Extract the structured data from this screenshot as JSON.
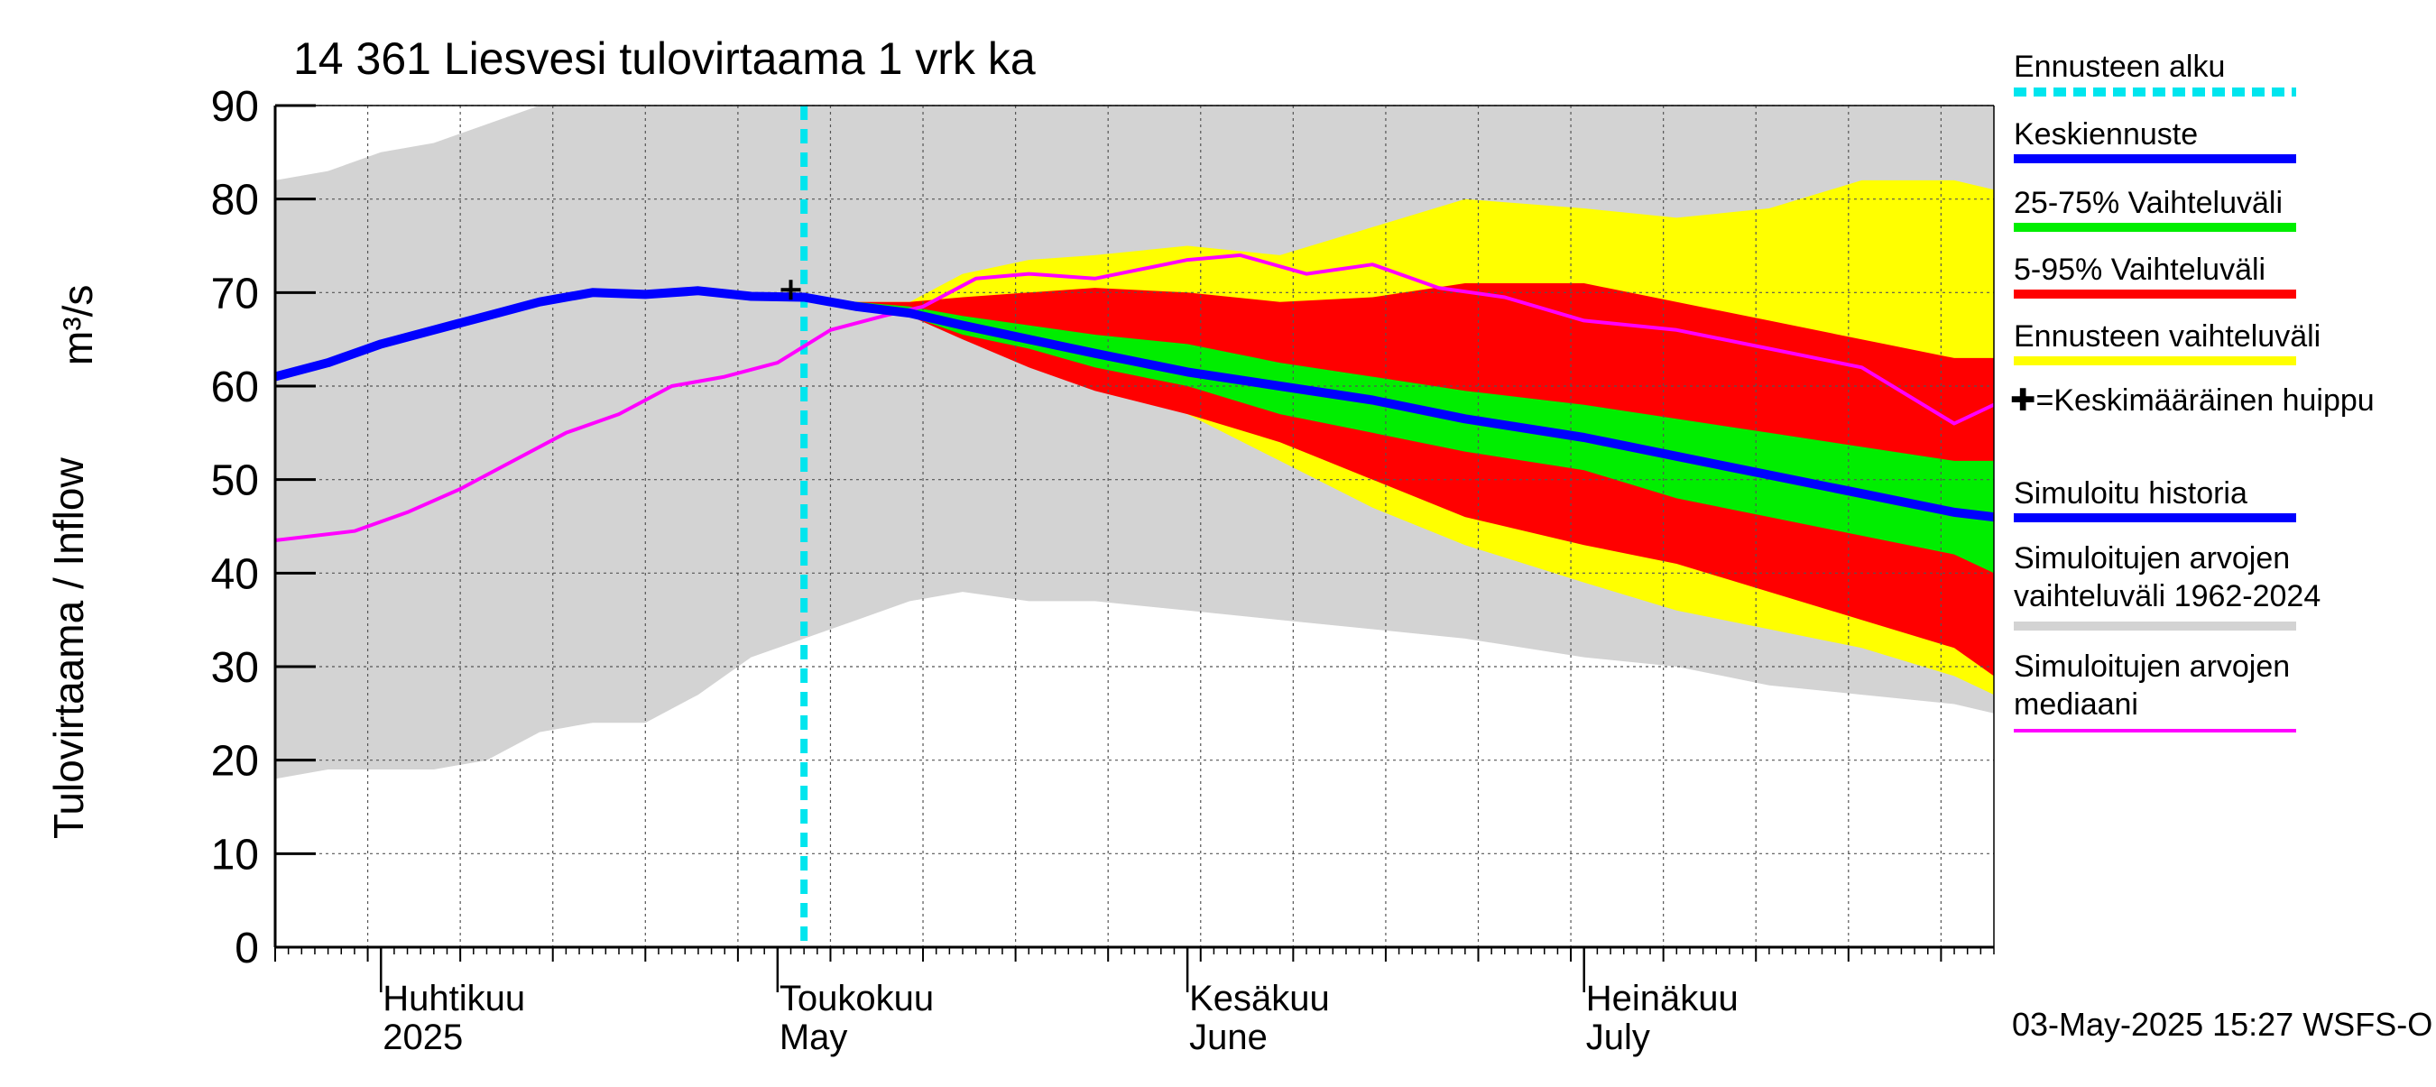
{
  "chart_data": {
    "type": "area",
    "title": "14 361 Liesvesi tulovirtaama 1 vrk ka",
    "ylabel_fi": "Tulovirtaama / Inflow",
    "ylabel_unit": "m³/s",
    "ylim": [
      0,
      90
    ],
    "yticks": [
      0,
      10,
      20,
      30,
      40,
      50,
      60,
      70,
      80,
      90
    ],
    "x_range": [
      "2025-03-24",
      "2025-08-01"
    ],
    "grid": true,
    "month_labels": [
      {
        "date": "2025-04-01",
        "fi": "Huhtikuu",
        "en": "2025"
      },
      {
        "date": "2025-05-01",
        "fi": "Toukokuu",
        "en": "May"
      },
      {
        "date": "2025-06-01",
        "fi": "Kesäkuu",
        "en": "June"
      },
      {
        "date": "2025-07-01",
        "fi": "Heinäkuu",
        "en": "July"
      }
    ],
    "forecast_start": "2025-05-03",
    "mean_peak": {
      "date": "2025-05-02",
      "value": 70.3
    },
    "footer": "03-May-2025 15:27 WSFS-O",
    "legend": [
      {
        "label": "Ennusteen alku",
        "color": "#00e5ee",
        "style": "dashed"
      },
      {
        "label": "Keskiennuste",
        "color": "#0000ff",
        "style": "line"
      },
      {
        "label": "25-75% Vaihteluväli",
        "color": "#00ee00",
        "style": "line"
      },
      {
        "label": "5-95% Vaihteluväli",
        "color": "#ff0000",
        "style": "line"
      },
      {
        "label": "Ennusteen vaihteluväli",
        "color": "#ffff00",
        "style": "line"
      },
      {
        "label": "✚=Keskimääräinen huippu",
        "color": "#000000",
        "style": "none"
      },
      {
        "label": "Simuloitu historia",
        "color": "#0000ff",
        "style": "line"
      },
      {
        "label": "Simuloitujen arvojen vaihteluväli 1962-2024",
        "color": "#d3d3d3",
        "style": "line"
      },
      {
        "label": "Simuloitujen arvojen mediaani",
        "color": "#ff00ff",
        "style": "line"
      }
    ],
    "series": [
      {
        "name": "Simuloitujen arvojen vaihteluväli 1962-2024",
        "kind": "band",
        "color": "#d3d3d3",
        "x": [
          "2025-03-24",
          "2025-03-28",
          "2025-04-01",
          "2025-04-05",
          "2025-04-09",
          "2025-04-13",
          "2025-04-17",
          "2025-04-21",
          "2025-04-25",
          "2025-04-29",
          "2025-05-03",
          "2025-05-07",
          "2025-05-11",
          "2025-05-15",
          "2025-05-20",
          "2025-05-25",
          "2025-06-01",
          "2025-06-08",
          "2025-06-15",
          "2025-06-22",
          "2025-07-01",
          "2025-07-08",
          "2025-07-15",
          "2025-07-22",
          "2025-07-29",
          "2025-08-01"
        ],
        "lower": [
          18,
          19,
          19,
          19,
          20,
          23,
          24,
          24,
          27,
          31,
          33,
          35,
          37,
          38,
          37,
          37,
          36,
          35,
          34,
          33,
          31,
          30,
          28,
          27,
          26,
          25
        ],
        "upper": [
          82,
          83,
          85,
          86,
          88,
          90,
          90,
          90,
          90,
          90,
          90,
          90,
          90,
          90,
          90,
          90,
          90,
          90,
          90,
          90,
          90,
          90,
          90,
          90,
          90,
          90
        ]
      },
      {
        "name": "Ennusteen vaihteluväli",
        "kind": "band",
        "color": "#ffff00",
        "x": [
          "2025-05-03",
          "2025-05-07",
          "2025-05-11",
          "2025-05-15",
          "2025-05-20",
          "2025-05-25",
          "2025-06-01",
          "2025-06-08",
          "2025-06-15",
          "2025-06-22",
          "2025-07-01",
          "2025-07-08",
          "2025-07-15",
          "2025-07-22",
          "2025-07-29",
          "2025-08-01"
        ],
        "lower": [
          69.5,
          68.5,
          67.5,
          66,
          63,
          60,
          57,
          52,
          47,
          43,
          39,
          36,
          34,
          32,
          29,
          27
        ],
        "upper": [
          69.5,
          69,
          69,
          72,
          73.5,
          74,
          75,
          74,
          77,
          80,
          79,
          78,
          79,
          82,
          82,
          81
        ]
      },
      {
        "name": "5-95% Vaihteluväli",
        "kind": "band",
        "color": "#ff0000",
        "x": [
          "2025-05-03",
          "2025-05-07",
          "2025-05-11",
          "2025-05-15",
          "2025-05-20",
          "2025-05-25",
          "2025-06-01",
          "2025-06-08",
          "2025-06-15",
          "2025-06-22",
          "2025-07-01",
          "2025-07-08",
          "2025-07-15",
          "2025-07-22",
          "2025-07-29",
          "2025-08-01"
        ],
        "lower": [
          69.5,
          68.5,
          67.5,
          65,
          62,
          59.5,
          57,
          54,
          50,
          46,
          43,
          41,
          38,
          35,
          32,
          29
        ],
        "upper": [
          69.5,
          69,
          69,
          69.5,
          70,
          70.5,
          70,
          69,
          69.5,
          71,
          71,
          69,
          67,
          65,
          63,
          63
        ]
      },
      {
        "name": "25-75% Vaihteluväli",
        "kind": "band",
        "color": "#00ee00",
        "x": [
          "2025-05-03",
          "2025-05-07",
          "2025-05-11",
          "2025-05-15",
          "2025-05-20",
          "2025-05-25",
          "2025-06-01",
          "2025-06-08",
          "2025-06-15",
          "2025-06-22",
          "2025-07-01",
          "2025-07-08",
          "2025-07-15",
          "2025-07-22",
          "2025-07-29",
          "2025-08-01"
        ],
        "lower": [
          69.5,
          68.5,
          67.5,
          65.5,
          64,
          62,
          60,
          57,
          55,
          53,
          51,
          48,
          46,
          44,
          42,
          40
        ],
        "upper": [
          69.5,
          69,
          68.5,
          67.5,
          66.5,
          65.5,
          64.5,
          62.5,
          61,
          59.5,
          58,
          56.5,
          55,
          53.5,
          52,
          52
        ]
      },
      {
        "name": "Keskiennuste",
        "kind": "line",
        "color": "#0000ff",
        "x": [
          "2025-05-03",
          "2025-05-07",
          "2025-05-11",
          "2025-05-15",
          "2025-05-20",
          "2025-05-25",
          "2025-06-01",
          "2025-06-08",
          "2025-06-15",
          "2025-06-22",
          "2025-07-01",
          "2025-07-08",
          "2025-07-15",
          "2025-07-22",
          "2025-07-29",
          "2025-08-01"
        ],
        "values": [
          69.5,
          68.5,
          67.8,
          66.5,
          65,
          63.5,
          61.5,
          60,
          58.5,
          56.5,
          54.5,
          52.5,
          50.5,
          48.5,
          46.5,
          46
        ]
      },
      {
        "name": "Simuloitu historia",
        "kind": "line",
        "color": "#0000ff",
        "x": [
          "2025-03-24",
          "2025-03-28",
          "2025-04-01",
          "2025-04-05",
          "2025-04-09",
          "2025-04-13",
          "2025-04-17",
          "2025-04-21",
          "2025-04-25",
          "2025-04-29",
          "2025-05-03"
        ],
        "values": [
          61,
          62.5,
          64.5,
          66,
          67.5,
          69,
          70,
          69.8,
          70.2,
          69.6,
          69.5
        ]
      },
      {
        "name": "Simuloitujen arvojen mediaani",
        "kind": "line",
        "color": "#ff00ff",
        "x": [
          "2025-03-24",
          "2025-03-30",
          "2025-04-03",
          "2025-04-07",
          "2025-04-11",
          "2025-04-15",
          "2025-04-19",
          "2025-04-23",
          "2025-04-27",
          "2025-05-01",
          "2025-05-05",
          "2025-05-09",
          "2025-05-12",
          "2025-05-16",
          "2025-05-20",
          "2025-05-25",
          "2025-06-01",
          "2025-06-05",
          "2025-06-10",
          "2025-06-15",
          "2025-06-20",
          "2025-06-25",
          "2025-07-01",
          "2025-07-08",
          "2025-07-15",
          "2025-07-22",
          "2025-07-29",
          "2025-08-01"
        ],
        "values": [
          43.5,
          44.5,
          46.5,
          49,
          52,
          55,
          57,
          60,
          61,
          62.5,
          66,
          67.5,
          68.5,
          71.5,
          72,
          71.5,
          73.5,
          74,
          72,
          73,
          70.5,
          69.5,
          67,
          66,
          64,
          62,
          56,
          58
        ]
      }
    ]
  }
}
